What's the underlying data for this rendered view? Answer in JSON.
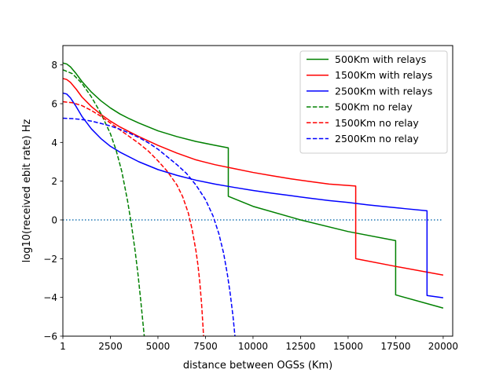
{
  "chart_data": {
    "type": "line",
    "title": "",
    "xlabel": "distance between OGSs (Km)",
    "ylabel": "log10(received ebit rate) Hz",
    "xlim": [
      1,
      20500
    ],
    "ylim": [
      -6,
      9
    ],
    "xticks": [
      1,
      2500,
      5000,
      7500,
      10000,
      12500,
      15000,
      17500,
      20000
    ],
    "xtick_labels": [
      "1",
      "2500",
      "5000",
      "7500",
      "10000",
      "12500",
      "15000",
      "17500",
      "20000"
    ],
    "yticks": [
      -6,
      -4,
      -2,
      0,
      2,
      4,
      6,
      8
    ],
    "ytick_labels": [
      "−6",
      "−4",
      "−2",
      "0",
      "2",
      "4",
      "6",
      "8"
    ],
    "legend_position": "top-right",
    "threshold": {
      "y": 0,
      "color": "#1f77b4",
      "style": "dotted"
    },
    "series": [
      {
        "name": "500Km with relays",
        "color": "#008000",
        "style": "solid",
        "x": [
          1,
          200,
          400,
          700,
          1000,
          1500,
          2000,
          2500,
          3000,
          3500,
          4000,
          5000,
          6000,
          7000,
          8000,
          8700,
          8700,
          10000,
          12500,
          15000,
          17500,
          17500,
          20000
        ],
        "y": [
          8.1,
          8.05,
          7.9,
          7.55,
          7.15,
          6.6,
          6.15,
          5.78,
          5.47,
          5.22,
          5.0,
          4.6,
          4.3,
          4.05,
          3.85,
          3.72,
          1.22,
          0.7,
          0.0,
          -0.6,
          -1.07,
          -3.87,
          -4.55
        ]
      },
      {
        "name": "1500Km with relays",
        "color": "#ff0000",
        "style": "solid",
        "x": [
          1,
          200,
          400,
          700,
          1000,
          1500,
          2000,
          2500,
          3000,
          3500,
          4000,
          5000,
          6000,
          7000,
          8000,
          9000,
          10000,
          11000,
          12000,
          13000,
          14000,
          15000,
          15400,
          15400,
          17500,
          20000
        ],
        "y": [
          7.3,
          7.25,
          7.1,
          6.75,
          6.35,
          5.85,
          5.45,
          5.1,
          4.8,
          4.55,
          4.3,
          3.85,
          3.45,
          3.1,
          2.85,
          2.65,
          2.45,
          2.28,
          2.12,
          1.98,
          1.85,
          1.78,
          1.75,
          -2.0,
          -2.4,
          -2.85
        ]
      },
      {
        "name": "2500Km with relays",
        "color": "#0000ff",
        "style": "solid",
        "x": [
          1,
          200,
          400,
          700,
          1000,
          1500,
          2000,
          2500,
          3000,
          4000,
          5000,
          6000,
          7000,
          8000,
          9000,
          10000,
          11000,
          12000,
          13000,
          14000,
          15000,
          16000,
          17000,
          18000,
          19150,
          19150,
          20000
        ],
        "y": [
          6.55,
          6.5,
          6.3,
          5.85,
          5.35,
          4.7,
          4.2,
          3.8,
          3.5,
          3.0,
          2.6,
          2.3,
          2.05,
          1.85,
          1.68,
          1.52,
          1.38,
          1.25,
          1.12,
          1.0,
          0.9,
          0.78,
          0.68,
          0.58,
          0.47,
          -3.9,
          -4.02
        ]
      },
      {
        "name": "500Km no relay",
        "color": "#008000",
        "style": "dashed",
        "x": [
          1,
          500,
          1000,
          1500,
          2000,
          2500,
          2800,
          3100,
          3400,
          3600,
          3800,
          3950,
          4100,
          4200,
          4280
        ],
        "y": [
          7.75,
          7.55,
          7.05,
          6.35,
          5.5,
          4.45,
          3.6,
          2.5,
          1.0,
          -0.2,
          -1.6,
          -2.8,
          -4.2,
          -5.2,
          -6.0
        ]
      },
      {
        "name": "1500Km no relay",
        "color": "#ff0000",
        "style": "dashed",
        "x": [
          1,
          500,
          1000,
          1500,
          2000,
          2500,
          3000,
          3500,
          4000,
          4500,
          5000,
          5500,
          6000,
          6300,
          6600,
          6800,
          7000,
          7100,
          7200,
          7300,
          7400
        ],
        "y": [
          6.1,
          6.05,
          5.9,
          5.65,
          5.35,
          5.0,
          4.65,
          4.3,
          3.95,
          3.55,
          3.05,
          2.5,
          1.8,
          1.2,
          0.35,
          -0.5,
          -1.6,
          -2.3,
          -3.2,
          -4.4,
          -6.0
        ]
      },
      {
        "name": "2500Km no relay",
        "color": "#0000ff",
        "style": "dashed",
        "x": [
          1,
          500,
          1000,
          1500,
          2000,
          2500,
          3000,
          3500,
          4000,
          4500,
          5000,
          5500,
          6000,
          6500,
          7000,
          7500,
          7900,
          8200,
          8450,
          8650,
          8800,
          8950,
          9050
        ],
        "y": [
          5.25,
          5.23,
          5.18,
          5.1,
          4.98,
          4.85,
          4.68,
          4.48,
          4.25,
          3.98,
          3.65,
          3.25,
          2.85,
          2.4,
          1.8,
          1.05,
          0.2,
          -0.7,
          -1.7,
          -2.8,
          -3.8,
          -5.0,
          -6.0
        ]
      }
    ]
  }
}
